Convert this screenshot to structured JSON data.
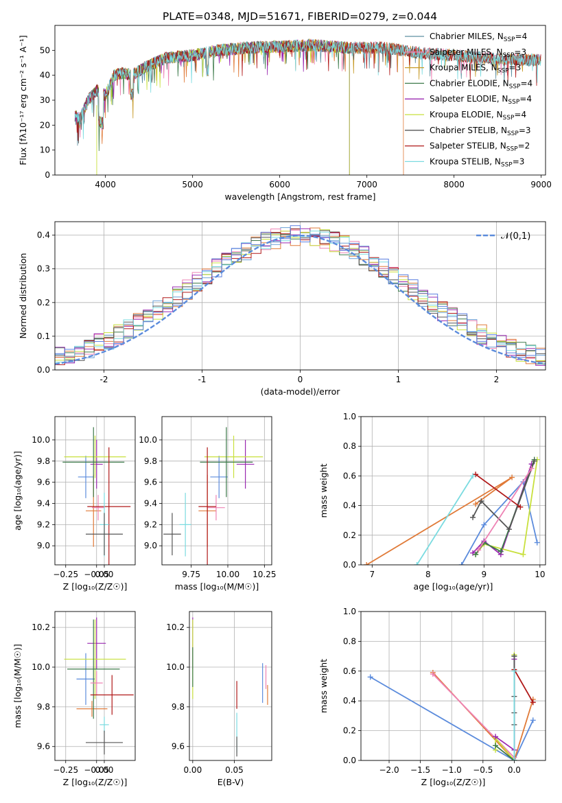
{
  "title": "PLATE=0348, MJD=51671, FIBERID=0279, z=0.044",
  "chart_data": [
    {
      "id": "spectrum",
      "type": "line",
      "xlabel": "wavelength [Angstrom, rest frame]",
      "ylabel": "Flux [fλ10⁻¹⁷ erg cm⁻² s⁻¹ A⁻¹]",
      "xlim": [
        3420,
        9050
      ],
      "ylim": [
        0,
        60
      ],
      "xticks": [
        4000,
        5000,
        6000,
        7000,
        8000,
        9000
      ],
      "yticks": [
        0,
        10,
        20,
        30,
        40,
        50
      ],
      "grid": false,
      "legend_position": "top-right",
      "series": [
        {
          "name": "Chabrier MILES, N_SSP=4",
          "legend_main": "Chabrier MILES, N",
          "legend_sub": "SSP",
          "legend_tail": "=4",
          "color": "#5e8fa0",
          "extent": [
            3650,
            9000
          ]
        },
        {
          "name": "Salpeter MILES, N_SSP=3",
          "legend_main": "Salpeter MILES, N",
          "legend_sub": "SSP",
          "legend_tail": "=3",
          "color": "#ee82b4",
          "extent": [
            3650,
            9000
          ]
        },
        {
          "name": "Kroupa MILES, N_SSP=3",
          "legend_main": "Kroupa MILES, N",
          "legend_sub": "SSP",
          "legend_tail": "=3",
          "color": "#c79a28",
          "extent": [
            3650,
            9000
          ]
        },
        {
          "name": "Chabrier ELODIE, N_SSP=4",
          "legend_main": "Chabrier ELODIE, N",
          "legend_sub": "SSP",
          "legend_tail": "=4",
          "color": "#3d7a4a",
          "extent": [
            3650,
            6800
          ]
        },
        {
          "name": "Salpeter ELODIE, N_SSP=4",
          "legend_main": "Salpeter ELODIE, N",
          "legend_sub": "SSP",
          "legend_tail": "=4",
          "color": "#9a28b0",
          "extent": [
            3650,
            6800
          ]
        },
        {
          "name": "Kroupa ELODIE, N_SSP=4",
          "legend_main": "Kroupa ELODIE, N",
          "legend_sub": "SSP",
          "legend_tail": "=4",
          "color": "#c8e03c",
          "extent": [
            3900,
            6800
          ]
        },
        {
          "name": "Chabrier STELIB, N_SSP=3",
          "legend_main": "Chabrier STELIB, N",
          "legend_sub": "SSP",
          "legend_tail": "=3",
          "color": "#555555",
          "extent": [
            3650,
            9000
          ]
        },
        {
          "name": "Salpeter STELIB, N_SSP=2",
          "legend_main": "Salpeter STELIB, N",
          "legend_sub": "SSP",
          "legend_tail": "=2",
          "color": "#b01818",
          "extent": [
            3650,
            9000
          ]
        },
        {
          "name": "Kroupa STELIB, N_SSP=3",
          "legend_main": "Kroupa STELIB, N",
          "legend_sub": "SSP",
          "legend_tail": "=3",
          "color": "#7adbe0",
          "extent": [
            3650,
            9000
          ]
        }
      ],
      "extra_line": {
        "color": "#e07a38",
        "extent": [
          3650,
          7420
        ]
      },
      "continuum": {
        "x": [
          3650,
          3700,
          3800,
          3900,
          4000,
          4100,
          4200,
          4300,
          4500,
          4700,
          5000,
          5300,
          5600,
          6000,
          6400,
          6800,
          7200,
          7600,
          8000,
          8500,
          9000
        ],
        "y": [
          24,
          22,
          30,
          34,
          32,
          40,
          41,
          40,
          44,
          47,
          48,
          50,
          51,
          51.5,
          52,
          51,
          51,
          49,
          48,
          46.5,
          46
        ]
      }
    },
    {
      "id": "residuals",
      "type": "histogram",
      "xlabel": "(data-model)/error",
      "ylabel": "Normed distribution",
      "xlim": [
        -2.5,
        2.5
      ],
      "ylim": [
        0,
        0.44
      ],
      "xticks": [
        -2,
        -1,
        0,
        1,
        2
      ],
      "yticks": [
        0.0,
        0.1,
        0.2,
        0.3,
        0.4
      ],
      "grid": true,
      "bin_width": 0.1,
      "legend_position": "top-right",
      "legend": "𝒩(0,1)",
      "reference_color": "#5b8bdc",
      "series_colors": [
        "#6aa0d8",
        "#ee82b4",
        "#e07a38",
        "#3d7a4a",
        "#9a28b0",
        "#c8e03c",
        "#555555",
        "#b01818",
        "#7adbe0",
        "#5b7fe0"
      ]
    },
    {
      "id": "age-z",
      "type": "scatter",
      "xlabel": "Z [log₁₀(Z/Z☉)]",
      "ylabel": "age  [log₁₀(age/yr)]",
      "xlim": [
        -0.32,
        0.2
      ],
      "ylim": [
        8.82,
        10.22
      ],
      "xticks": [
        -0.25,
        -0.05,
        0.0
      ],
      "xticklabels": [
        "−0.25",
        "−0.05",
        "0.00"
      ],
      "yticks": [
        9.0,
        9.2,
        9.4,
        9.6,
        9.8,
        10.0
      ],
      "grid": true,
      "points": [
        {
          "x": -0.12,
          "y": 9.65,
          "ex": 0.05,
          "ey": 0.2,
          "color": "#5b8bdc"
        },
        {
          "x": -0.07,
          "y": 9.33,
          "ex": 0.05,
          "ey": 0.34,
          "color": "#e07a38"
        },
        {
          "x": -0.05,
          "y": 9.77,
          "ex": 0.04,
          "ey": 0.23,
          "color": "#9a28b0"
        },
        {
          "x": -0.06,
          "y": 9.84,
          "ex": 0.2,
          "ey": 0.2,
          "color": "#c8e03c"
        },
        {
          "x": -0.07,
          "y": 9.79,
          "ex": 0.2,
          "ey": 0.33,
          "color": "#3d7a4a"
        },
        {
          "x": -0.04,
          "y": 9.36,
          "ex": 0.04,
          "ey": 0.12,
          "color": "#ee82b4"
        },
        {
          "x": 0.03,
          "y": 9.37,
          "ex": 0.14,
          "ey": 0.56,
          "color": "#b01818"
        },
        {
          "x": 0.0,
          "y": 9.2,
          "ex": 0.03,
          "ey": 0.3,
          "color": "#7adbe0"
        },
        {
          "x": 0.0,
          "y": 9.11,
          "ex": 0.12,
          "ey": 0.2,
          "color": "#555555"
        }
      ]
    },
    {
      "id": "age-mass",
      "type": "scatter",
      "xlabel": "mass [log₁₀(M/M☉)]",
      "ylabel": "",
      "xlim": [
        9.55,
        10.3
      ],
      "ylim": [
        8.82,
        10.22
      ],
      "xticks": [
        9.75,
        10.0,
        10.25
      ],
      "xticklabels": [
        "9.75",
        "10.00",
        "10.25"
      ],
      "yticks": [
        9.0,
        9.2,
        9.4,
        9.6,
        9.8,
        10.0
      ],
      "grid": true,
      "points": [
        {
          "x": 9.94,
          "y": 9.65,
          "ex": 0.06,
          "ey": 0.2,
          "color": "#5b8bdc"
        },
        {
          "x": 9.86,
          "y": 9.33,
          "ex": 0.06,
          "ey": 0.34,
          "color": "#e07a38"
        },
        {
          "x": 10.12,
          "y": 9.77,
          "ex": 0.06,
          "ey": 0.23,
          "color": "#9a28b0"
        },
        {
          "x": 10.04,
          "y": 9.84,
          "ex": 0.2,
          "ey": 0.2,
          "color": "#c8e03c"
        },
        {
          "x": 9.99,
          "y": 9.79,
          "ex": 0.18,
          "ey": 0.33,
          "color": "#3d7a4a"
        },
        {
          "x": 9.92,
          "y": 9.36,
          "ex": 0.06,
          "ey": 0.12,
          "color": "#ee82b4"
        },
        {
          "x": 9.86,
          "y": 9.37,
          "ex": 0.06,
          "ey": 0.56,
          "color": "#b01818"
        },
        {
          "x": 9.71,
          "y": 9.2,
          "ex": 0.04,
          "ey": 0.3,
          "color": "#7adbe0"
        },
        {
          "x": 9.62,
          "y": 9.11,
          "ex": 0.06,
          "ey": 0.2,
          "color": "#555555"
        }
      ]
    },
    {
      "id": "massweight-age",
      "type": "line",
      "xlabel": "age  [log₁₀(age/yr)]",
      "ylabel": "mass weight",
      "xlim": [
        6.8,
        10.1
      ],
      "ylim": [
        0,
        1
      ],
      "xticks": [
        7,
        8,
        9,
        10
      ],
      "yticks": [
        0.0,
        0.2,
        0.4,
        0.6,
        0.8,
        1.0
      ],
      "grid": true,
      "series": [
        {
          "color": "#5b8bdc",
          "x": [
            8.6,
            9.0,
            9.7,
            9.95
          ],
          "y": [
            0.0,
            0.27,
            0.56,
            0.15
          ]
        },
        {
          "color": "#e07a38",
          "x": [
            6.9,
            9.5,
            8.85
          ],
          "y": [
            0.0,
            0.59,
            0.41
          ]
        },
        {
          "color": "#9a28b0",
          "x": [
            8.8,
            9.0,
            9.3,
            9.85
          ],
          "y": [
            0.08,
            0.16,
            0.07,
            0.68
          ]
        },
        {
          "color": "#c8e03c",
          "x": [
            8.85,
            9.0,
            9.7,
            9.95
          ],
          "y": [
            0.07,
            0.14,
            0.07,
            0.71
          ]
        },
        {
          "color": "#3d7a4a",
          "x": [
            8.85,
            9.0,
            9.3,
            9.9
          ],
          "y": [
            0.07,
            0.15,
            0.09,
            0.71
          ]
        },
        {
          "color": "#555555",
          "x": [
            8.8,
            8.95,
            9.45,
            9.9
          ],
          "y": [
            0.32,
            0.43,
            0.24,
            0.7
          ]
        },
        {
          "color": "#b01818",
          "x": [
            8.85,
            9.65
          ],
          "y": [
            0.61,
            0.39
          ]
        },
        {
          "color": "#7adbe0",
          "x": [
            7.8,
            8.8
          ],
          "y": [
            0.0,
            0.6
          ]
        },
        {
          "color": "#ee82b4",
          "x": [
            8.9,
            9.85
          ],
          "y": [
            0.1,
            0.65
          ]
        }
      ]
    },
    {
      "id": "mass-z",
      "type": "scatter",
      "xlabel": "Z [log₁₀(Z/Z☉)]",
      "ylabel": "mass [log₁₀(M/M☉)]",
      "xlim": [
        -0.32,
        0.2
      ],
      "ylim": [
        9.53,
        10.28
      ],
      "xticks": [
        -0.25,
        -0.05,
        0.0
      ],
      "xticklabels": [
        "−0.25",
        "−0.05",
        "0.00"
      ],
      "yticks": [
        9.6,
        9.8,
        10.0,
        10.2
      ],
      "grid": true,
      "points": [
        {
          "x": -0.12,
          "y": 9.94,
          "ex": 0.06,
          "ey": 0.13,
          "color": "#5b8bdc"
        },
        {
          "x": -0.08,
          "y": 9.79,
          "ex": 0.1,
          "ey": 0.04,
          "color": "#e07a38"
        },
        {
          "x": -0.05,
          "y": 10.12,
          "ex": 0.06,
          "ey": 0.13,
          "color": "#9a28b0"
        },
        {
          "x": -0.06,
          "y": 10.04,
          "ex": 0.2,
          "ey": 0.2,
          "color": "#c8e03c"
        },
        {
          "x": -0.07,
          "y": 9.99,
          "ex": 0.17,
          "ey": 0.25,
          "color": "#3d7a4a"
        },
        {
          "x": -0.05,
          "y": 9.92,
          "ex": 0.04,
          "ey": 0.06,
          "color": "#ee82b4"
        },
        {
          "x": 0.05,
          "y": 9.86,
          "ex": 0.14,
          "ey": 0.1,
          "color": "#b01818"
        },
        {
          "x": 0.0,
          "y": 9.71,
          "ex": 0.03,
          "ey": 0.04,
          "color": "#7adbe0"
        },
        {
          "x": 0.0,
          "y": 9.62,
          "ex": 0.12,
          "ey": 0.06,
          "color": "#555555"
        }
      ]
    },
    {
      "id": "mass-ebv",
      "type": "scatter",
      "xlabel": "E(B-V)",
      "ylabel": "",
      "xlim": [
        -0.004,
        0.095
      ],
      "ylim": [
        9.53,
        10.28
      ],
      "xticks": [
        0.0,
        0.05
      ],
      "xticklabels": [
        "0.00",
        "0.05"
      ],
      "yticks": [
        9.6,
        9.8,
        10.0,
        10.2
      ],
      "grid": true,
      "points": [
        {
          "x": 0.0,
          "y": 10.12,
          "ex": 0.0,
          "ey": 0.13,
          "color": "#9a28b0"
        },
        {
          "x": 0.0,
          "y": 10.04,
          "ex": 0.0,
          "ey": 0.2,
          "color": "#c8e03c"
        },
        {
          "x": 0.0,
          "y": 10.0,
          "ex": 0.0,
          "ey": 0.1,
          "color": "#3d7a4a"
        },
        {
          "x": 0.053,
          "y": 9.86,
          "ex": 0.0,
          "ey": 0.07,
          "color": "#b01818"
        },
        {
          "x": 0.053,
          "y": 9.67,
          "ex": 0.0,
          "ey": 0.1,
          "color": "#7adbe0"
        },
        {
          "x": 0.053,
          "y": 9.6,
          "ex": 0.0,
          "ey": 0.05,
          "color": "#555555"
        },
        {
          "x": 0.084,
          "y": 9.92,
          "ex": 0.0,
          "ey": 0.1,
          "color": "#5b8bdc"
        },
        {
          "x": 0.088,
          "y": 9.95,
          "ex": 0.0,
          "ey": 0.06,
          "color": "#ee82b4"
        },
        {
          "x": 0.09,
          "y": 9.86,
          "ex": 0.0,
          "ey": 0.05,
          "color": "#e07a38"
        }
      ]
    },
    {
      "id": "massweight-z",
      "type": "line",
      "xlabel": "Z [log₁₀(Z/Z☉)]",
      "ylabel": "mass weight",
      "xlim": [
        -2.45,
        0.5
      ],
      "ylim": [
        0,
        1
      ],
      "xticks": [
        -2.0,
        -1.5,
        -1.0,
        -0.5,
        0.0
      ],
      "xticklabels": [
        "−2.0",
        "−1.5",
        "−1.0",
        "−0.5",
        "0.0"
      ],
      "yticks": [
        0.0,
        0.2,
        0.4,
        0.6,
        0.8,
        1.0
      ],
      "grid": true,
      "series": [
        {
          "color": "#5b8bdc",
          "x": [
            -2.3,
            0.0,
            0.3
          ],
          "y": [
            0.56,
            0.0,
            0.27
          ]
        },
        {
          "color": "#e07a38",
          "x": [
            -1.3,
            0.0,
            0.3
          ],
          "y": [
            0.59,
            0.0,
            0.41
          ]
        },
        {
          "color": "#ee82b4",
          "x": [
            -1.3,
            0.0
          ],
          "y": [
            0.58,
            0.02
          ]
        },
        {
          "color": "#b01818",
          "x": [
            0.0,
            0.3
          ],
          "y": [
            0.61,
            0.39
          ]
        },
        {
          "color": "#c8e03c",
          "x": [
            -0.3,
            -0.3,
            0.0,
            0.0
          ],
          "y": [
            0.07,
            0.15,
            0.0,
            0.71
          ]
        },
        {
          "color": "#3d7a4a",
          "x": [
            -0.3,
            0.0,
            0.0
          ],
          "y": [
            0.1,
            0.0,
            0.7
          ]
        },
        {
          "color": "#9a28b0",
          "x": [
            -0.3,
            0.0,
            0.0
          ],
          "y": [
            0.16,
            0.07,
            0.68
          ]
        },
        {
          "color": "#555555",
          "x": [
            0.0,
            0.0,
            0.0,
            0.0
          ],
          "y": [
            0.24,
            0.32,
            0.43,
            0.7
          ]
        },
        {
          "color": "#7adbe0",
          "x": [
            0.0,
            0.0
          ],
          "y": [
            0.0,
            0.6
          ]
        }
      ]
    }
  ]
}
